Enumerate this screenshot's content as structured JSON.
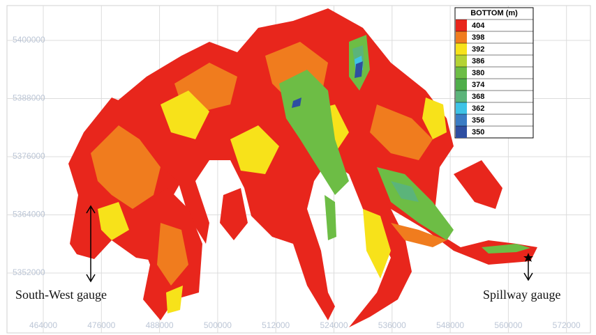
{
  "map": {
    "xticks": [
      464000,
      476000,
      488000,
      500000,
      512000,
      524000,
      536000,
      548000,
      560000,
      572000
    ],
    "yticks": [
      5400000,
      5388000,
      5376000,
      5364000,
      5352000
    ],
    "legend": {
      "title": "BOTTOM (m)",
      "entries": [
        {
          "label": "404",
          "color": "#e8261c"
        },
        {
          "label": "398",
          "color": "#f07c1e"
        },
        {
          "label": "392",
          "color": "#f7e21a"
        },
        {
          "label": "386",
          "color": "#b5d334"
        },
        {
          "label": "380",
          "color": "#6dbd45"
        },
        {
          "label": "374",
          "color": "#4fae4a"
        },
        {
          "label": "368",
          "color": "#5bb47a"
        },
        {
          "label": "362",
          "color": "#3ec3e6"
        },
        {
          "label": "356",
          "color": "#3a7cc4"
        },
        {
          "label": "350",
          "color": "#2e4ea1"
        }
      ]
    },
    "annotations": [
      "South-West gauge",
      "Spillway gauge"
    ]
  }
}
